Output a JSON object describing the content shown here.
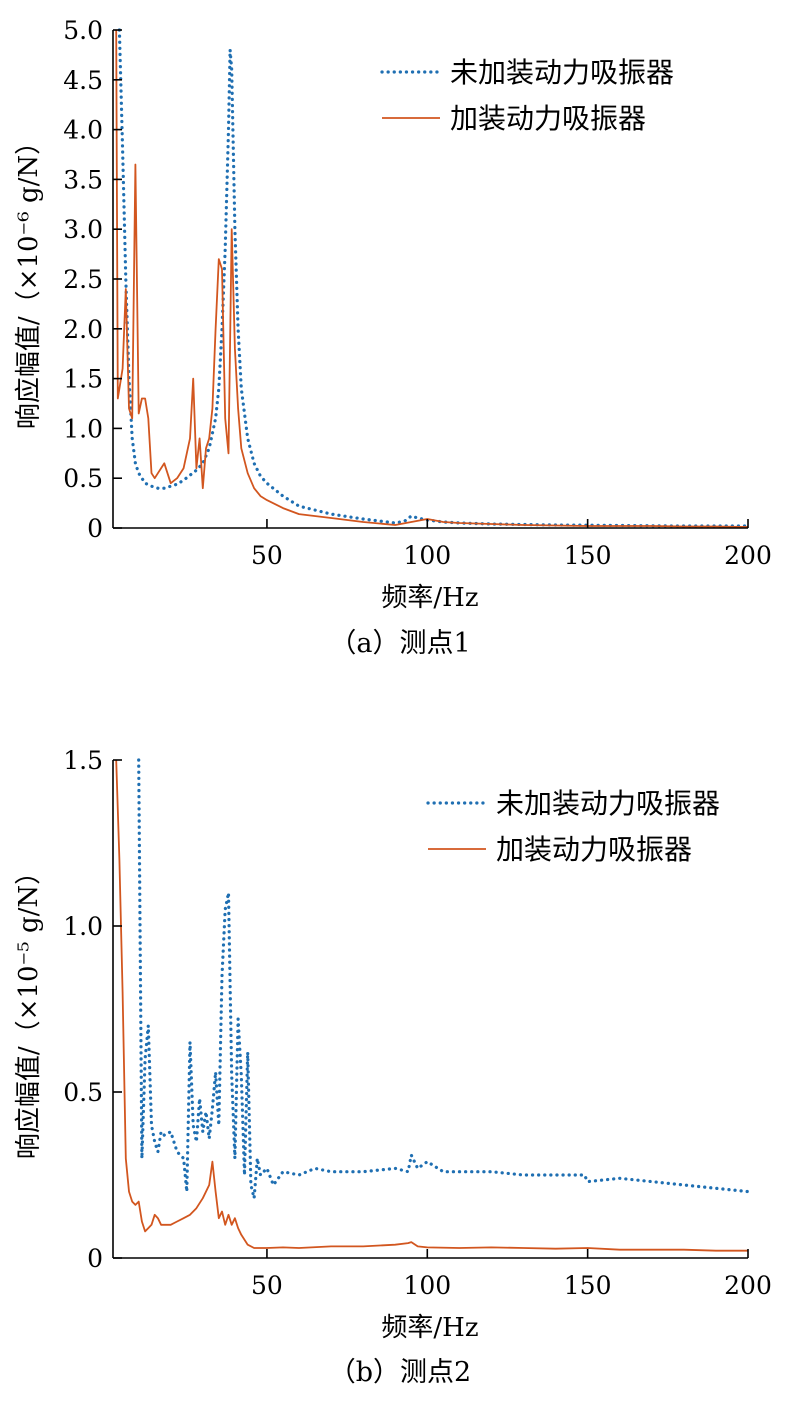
{
  "chart_data": [
    {
      "type": "line",
      "caption": "（a）测点1",
      "xlabel": "频率/Hz",
      "ylabel": "响应幅值/（×10⁻⁶ g/N）",
      "xlim": [
        2,
        200
      ],
      "ylim": [
        0,
        5.0
      ],
      "xticks": [
        50,
        100,
        150,
        200
      ],
      "xtick_labels": [
        "50",
        "100",
        "150",
        "200"
      ],
      "yticks": [
        0,
        0.5,
        1.0,
        1.5,
        2.0,
        2.5,
        3.0,
        3.5,
        4.0,
        4.5,
        5.0
      ],
      "ytick_labels": [
        "0",
        "0.5",
        "1.0",
        "1.5",
        "2.0",
        "2.5",
        "3.0",
        "3.5",
        "4.0",
        "4.5",
        "5.0"
      ],
      "legend_position": "top-right",
      "series": [
        {
          "name": "未加装动力吸振器",
          "color": "#1f6fb2",
          "style": "dotted",
          "x": [
            4,
            5,
            6,
            7,
            8,
            9,
            10,
            12,
            14,
            16,
            18,
            20,
            22,
            24,
            26,
            28,
            30,
            32,
            34,
            35,
            36,
            37,
            38,
            38.5,
            39,
            40,
            41,
            42,
            44,
            46,
            48,
            50,
            55,
            60,
            70,
            80,
            90,
            93,
            95,
            97,
            100,
            105,
            110,
            120,
            130,
            140,
            150,
            160,
            170,
            180,
            190,
            200
          ],
          "y": [
            5.0,
            3.8,
            2.5,
            1.5,
            0.9,
            0.65,
            0.55,
            0.45,
            0.42,
            0.4,
            0.4,
            0.42,
            0.44,
            0.48,
            0.53,
            0.58,
            0.65,
            0.8,
            1.1,
            1.4,
            2.0,
            2.8,
            4.0,
            4.8,
            4.6,
            3.0,
            2.0,
            1.4,
            0.9,
            0.65,
            0.52,
            0.45,
            0.32,
            0.22,
            0.14,
            0.09,
            0.05,
            0.07,
            0.12,
            0.1,
            0.08,
            0.06,
            0.05,
            0.04,
            0.035,
            0.03,
            0.028,
            0.025,
            0.022,
            0.02,
            0.02,
            0.02
          ]
        },
        {
          "name": "加装动力吸振器",
          "color": "#d2561f",
          "style": "solid",
          "x": [
            3,
            3.5,
            4,
            5,
            6,
            7,
            8,
            9,
            10,
            11,
            12,
            13,
            14,
            15,
            16,
            18,
            20,
            22,
            24,
            26,
            27,
            28,
            29,
            30,
            31,
            32,
            33,
            34,
            35,
            36,
            37,
            38,
            39,
            40,
            41,
            42,
            44,
            46,
            48,
            50,
            55,
            60,
            70,
            80,
            90,
            95,
            100,
            105,
            110,
            120,
            130,
            140,
            150,
            160,
            170,
            180,
            190,
            200
          ],
          "y": [
            5.0,
            1.3,
            1.4,
            1.6,
            2.4,
            1.2,
            1.1,
            3.65,
            1.15,
            1.3,
            1.3,
            1.1,
            0.55,
            0.5,
            0.55,
            0.65,
            0.45,
            0.5,
            0.6,
            0.9,
            1.5,
            0.6,
            0.9,
            0.4,
            0.8,
            0.9,
            1.2,
            2.0,
            2.7,
            2.6,
            1.1,
            0.75,
            3.0,
            1.8,
            1.2,
            0.8,
            0.55,
            0.4,
            0.32,
            0.28,
            0.2,
            0.14,
            0.1,
            0.06,
            0.03,
            0.06,
            0.09,
            0.06,
            0.05,
            0.04,
            0.03,
            0.025,
            0.02,
            0.02,
            0.02,
            0.015,
            0.015,
            0.01
          ]
        }
      ]
    },
    {
      "type": "line",
      "caption": "（b）测点2",
      "xlabel": "频率/Hz",
      "ylabel": "响应幅值/（×10⁻⁵ g/N）",
      "xlim": [
        2,
        200
      ],
      "ylim": [
        0,
        1.5
      ],
      "xticks": [
        50,
        100,
        150,
        200
      ],
      "xtick_labels": [
        "50",
        "100",
        "150",
        "200"
      ],
      "yticks": [
        0,
        0.5,
        1.0,
        1.5
      ],
      "ytick_labels": [
        "0",
        "0.5",
        "1.0",
        "1.5"
      ],
      "legend_position": "top-right",
      "series": [
        {
          "name": "未加装动力吸振器",
          "color": "#1f6fb2",
          "style": "dotted",
          "x": [
            10,
            11,
            12,
            13,
            14,
            15,
            16,
            17,
            18,
            20,
            22,
            24,
            25,
            26,
            27,
            28,
            29,
            30,
            31,
            32,
            33,
            34,
            35,
            36,
            37,
            38,
            39,
            40,
            41,
            42,
            43,
            44,
            45,
            46,
            47,
            48,
            50,
            52,
            55,
            60,
            65,
            70,
            80,
            90,
            94,
            95,
            97,
            100,
            105,
            110,
            120,
            130,
            140,
            149,
            150,
            160,
            170,
            180,
            190,
            200
          ],
          "y": [
            1.5,
            0.3,
            0.6,
            0.7,
            0.4,
            0.35,
            0.32,
            0.38,
            0.37,
            0.38,
            0.32,
            0.3,
            0.2,
            0.65,
            0.4,
            0.35,
            0.48,
            0.38,
            0.44,
            0.36,
            0.45,
            0.56,
            0.4,
            0.85,
            1.05,
            1.1,
            0.55,
            0.3,
            0.72,
            0.55,
            0.25,
            0.62,
            0.22,
            0.18,
            0.3,
            0.25,
            0.27,
            0.22,
            0.26,
            0.25,
            0.27,
            0.26,
            0.26,
            0.27,
            0.26,
            0.31,
            0.27,
            0.29,
            0.26,
            0.26,
            0.26,
            0.25,
            0.25,
            0.25,
            0.23,
            0.24,
            0.23,
            0.22,
            0.21,
            0.2
          ]
        },
        {
          "name": "加装动力吸振器",
          "color": "#d2561f",
          "style": "solid",
          "x": [
            3,
            4,
            5,
            6,
            7,
            8,
            9,
            10,
            11,
            12,
            13,
            14,
            15,
            16,
            17,
            18,
            20,
            22,
            24,
            26,
            28,
            30,
            32,
            33,
            34,
            35,
            36,
            37,
            38,
            39,
            40,
            41,
            42,
            44,
            46,
            48,
            50,
            55,
            60,
            70,
            80,
            90,
            94,
            95,
            97,
            100,
            110,
            120,
            130,
            140,
            150,
            160,
            170,
            180,
            190,
            200
          ],
          "y": [
            1.5,
            1.2,
            0.8,
            0.3,
            0.2,
            0.17,
            0.16,
            0.17,
            0.11,
            0.08,
            0.09,
            0.1,
            0.13,
            0.12,
            0.1,
            0.1,
            0.1,
            0.11,
            0.12,
            0.13,
            0.15,
            0.18,
            0.22,
            0.29,
            0.2,
            0.12,
            0.14,
            0.1,
            0.13,
            0.1,
            0.12,
            0.09,
            0.07,
            0.04,
            0.03,
            0.03,
            0.03,
            0.032,
            0.03,
            0.035,
            0.035,
            0.04,
            0.045,
            0.048,
            0.035,
            0.032,
            0.03,
            0.032,
            0.03,
            0.028,
            0.03,
            0.025,
            0.025,
            0.025,
            0.022,
            0.022
          ]
        }
      ]
    }
  ]
}
